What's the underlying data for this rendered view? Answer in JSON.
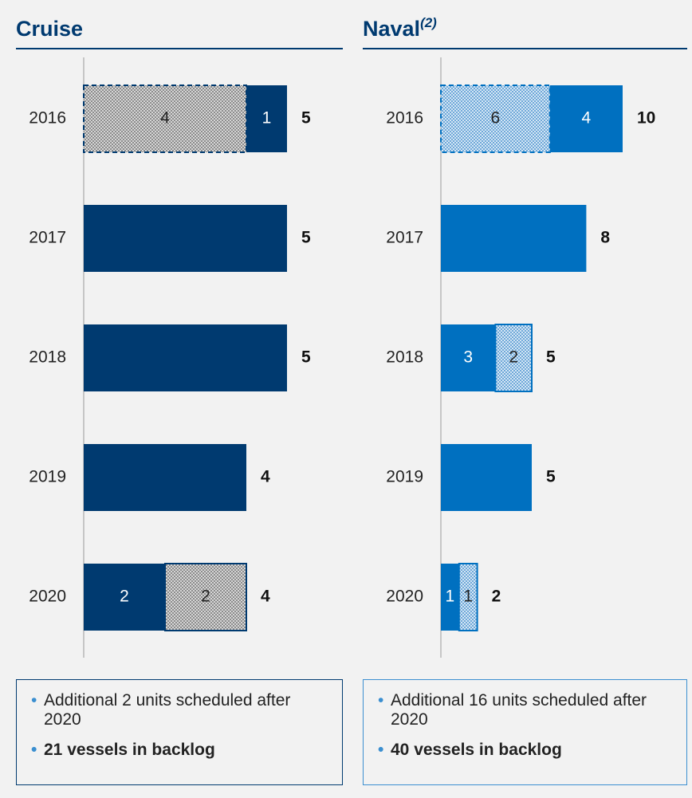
{
  "chart_data": [
    {
      "type": "stacked-bar",
      "title": "Cruise",
      "color": "#003a70",
      "hatch_color": "#8c8c8c",
      "xlim": [
        0,
        5
      ],
      "bars": [
        {
          "category": "2016",
          "segments": [
            {
              "value": 4,
              "hatched": true,
              "dashed": true
            },
            {
              "value": 1,
              "hatched": false
            }
          ],
          "total": 5
        },
        {
          "category": "2017",
          "segments": [
            {
              "value": 5,
              "hatched": false
            }
          ],
          "total": 5
        },
        {
          "category": "2018",
          "segments": [
            {
              "value": 5,
              "hatched": false
            }
          ],
          "total": 5
        },
        {
          "category": "2019",
          "segments": [
            {
              "value": 4,
              "hatched": false
            }
          ],
          "total": 4
        },
        {
          "category": "2020",
          "segments": [
            {
              "value": 2,
              "hatched": false
            },
            {
              "value": 2,
              "hatched": true
            }
          ],
          "total": 4
        }
      ],
      "notes": [
        {
          "text": "Additional 2 units scheduled after 2020",
          "bold": false
        },
        {
          "text": "21 vessels in backlog",
          "bold": true
        }
      ]
    },
    {
      "type": "stacked-bar",
      "title": "Naval",
      "title_note": "(2)",
      "color": "#0070c0",
      "hatch_color": "#6fa8d8",
      "xlim": [
        0,
        10
      ],
      "bars": [
        {
          "category": "2016",
          "segments": [
            {
              "value": 6,
              "hatched": true,
              "dashed": true
            },
            {
              "value": 4,
              "hatched": false
            }
          ],
          "total": 10
        },
        {
          "category": "2017",
          "segments": [
            {
              "value": 8,
              "hatched": false
            }
          ],
          "total": 8
        },
        {
          "category": "2018",
          "segments": [
            {
              "value": 3,
              "hatched": false
            },
            {
              "value": 2,
              "hatched": true
            }
          ],
          "total": 5
        },
        {
          "category": "2019",
          "segments": [
            {
              "value": 5,
              "hatched": false
            }
          ],
          "total": 5
        },
        {
          "category": "2020",
          "segments": [
            {
              "value": 1,
              "hatched": false
            },
            {
              "value": 1,
              "hatched": true
            }
          ],
          "total": 2
        }
      ],
      "notes": [
        {
          "text": "Additional 16 units scheduled after 2020",
          "bold": false
        },
        {
          "text": "40 vessels in backlog",
          "bold": true
        }
      ]
    }
  ]
}
